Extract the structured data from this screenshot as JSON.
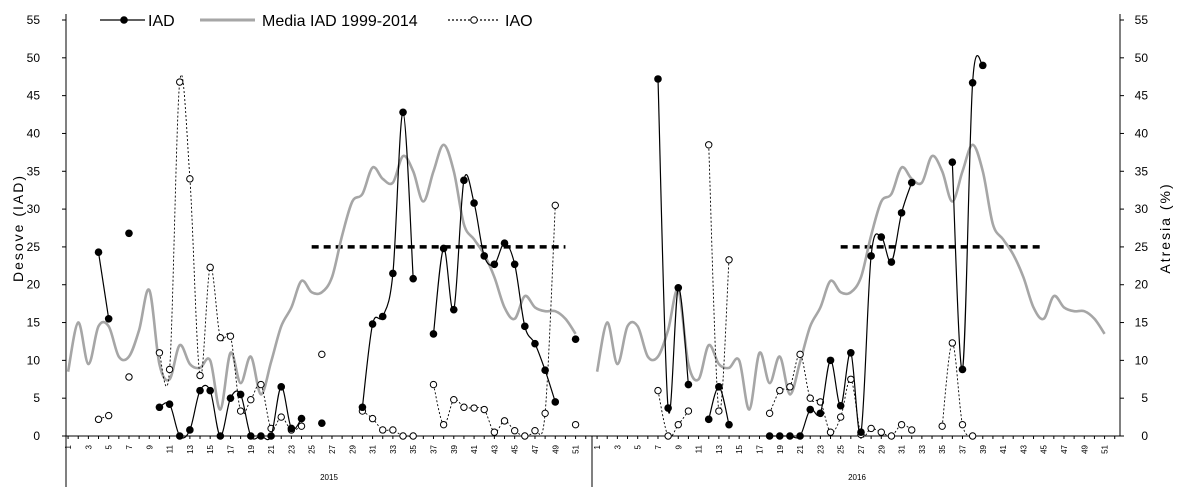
{
  "chart_data": {
    "type": "line",
    "ylabel_left": "Desove (IAD)",
    "ylabel_right": "Atresia (%)",
    "y_ticks": [
      0,
      5,
      10,
      15,
      20,
      25,
      30,
      35,
      40,
      45,
      50,
      55
    ],
    "ylim": [
      0,
      55
    ],
    "x_tick_labels": [
      "1",
      "3",
      "5",
      "7",
      "9",
      "11",
      "13",
      "15",
      "17",
      "19",
      "21",
      "23",
      "25",
      "27",
      "29",
      "31",
      "33",
      "35",
      "37",
      "39",
      "41",
      "43",
      "45",
      "47",
      "49",
      "51"
    ],
    "years": [
      {
        "label": "2015",
        "xrange": [
          1,
          52
        ]
      },
      {
        "label": "2016",
        "xrange": [
          1,
          52
        ]
      }
    ],
    "legend": {
      "iad": "IAD",
      "media": "Media IAD  1999-2014",
      "iao": "IAO"
    },
    "colors": {
      "iad": "#000000",
      "media": "#a6a6a6",
      "iao": "#000000",
      "threshold": "#000000"
    },
    "threshold": {
      "value": 25,
      "segments": [
        {
          "year": 0,
          "x_from": 25,
          "x_to": 50
        },
        {
          "year": 1,
          "x_from": 25,
          "x_to": 45
        }
      ]
    },
    "series": [
      {
        "name": "IAD",
        "key": "iad",
        "style": "solid-filled",
        "years": [
          [
            [
              4,
              24.3
            ],
            [
              5,
              15.5
            ],
            [
              7,
              26.8
            ],
            [
              10,
              3.8
            ],
            [
              11,
              4.2
            ],
            [
              12,
              0
            ],
            [
              13,
              0.8
            ],
            [
              14,
              6
            ],
            [
              15,
              6
            ],
            [
              16,
              0
            ],
            [
              17,
              5
            ],
            [
              18,
              5.5
            ],
            [
              19,
              0
            ],
            [
              20,
              0
            ],
            [
              21,
              0
            ],
            [
              22,
              6.5
            ],
            [
              23,
              1
            ],
            [
              24,
              2.3
            ],
            [
              26,
              1.7
            ],
            [
              30,
              3.8
            ],
            [
              31,
              14.8
            ],
            [
              32,
              15.8
            ],
            [
              33,
              21.5
            ],
            [
              34,
              42.8
            ],
            [
              35,
              20.8
            ],
            [
              37,
              13.5
            ],
            [
              38,
              24.8
            ],
            [
              39,
              16.7
            ],
            [
              40,
              33.8
            ],
            [
              41,
              30.8
            ],
            [
              42,
              23.8
            ],
            [
              43,
              22.7
            ],
            [
              44,
              25.5
            ],
            [
              45,
              22.7
            ],
            [
              46,
              14.5
            ],
            [
              47,
              12.2
            ],
            [
              48,
              8.7
            ],
            [
              49,
              4.5
            ],
            [
              51,
              12.8
            ]
          ],
          [
            [
              7,
              47.2
            ],
            [
              8,
              3.7
            ],
            [
              9,
              19.6
            ],
            [
              10,
              6.8
            ],
            [
              12,
              2.2
            ],
            [
              13,
              6.5
            ],
            [
              14,
              1.5
            ],
            [
              18,
              0
            ],
            [
              19,
              0
            ],
            [
              20,
              0
            ],
            [
              21,
              0
            ],
            [
              22,
              3.5
            ],
            [
              23,
              3
            ],
            [
              24,
              10
            ],
            [
              25,
              4
            ],
            [
              26,
              11
            ],
            [
              27,
              0.5
            ],
            [
              28,
              23.8
            ],
            [
              29,
              26.3
            ],
            [
              30,
              23
            ],
            [
              31,
              29.5
            ],
            [
              32,
              33.5
            ],
            [
              36,
              36.2
            ],
            [
              37,
              8.8
            ],
            [
              38,
              46.7
            ],
            [
              39,
              49
            ]
          ]
        ]
      },
      {
        "name": "Media IAD  1999-2014",
        "key": "media",
        "style": "smooth",
        "years": [
          [
            [
              1,
              8.5
            ],
            [
              2,
              15
            ],
            [
              3,
              9.5
            ],
            [
              4,
              14.5
            ],
            [
              5,
              14.5
            ],
            [
              6,
              10.5
            ],
            [
              7,
              10.5
            ],
            [
              8,
              14
            ],
            [
              9,
              19.3
            ],
            [
              10,
              9.5
            ],
            [
              11,
              7.5
            ],
            [
              12,
              12
            ],
            [
              13,
              9.5
            ],
            [
              14,
              9
            ],
            [
              15,
              10
            ],
            [
              16,
              3.5
            ],
            [
              17,
              11
            ],
            [
              18,
              7
            ],
            [
              19,
              10.5
            ],
            [
              20,
              5.5
            ],
            [
              21,
              9.8
            ],
            [
              22,
              14.5
            ],
            [
              23,
              17
            ],
            [
              24,
              20.5
            ],
            [
              25,
              19
            ],
            [
              26,
              19
            ],
            [
              27,
              21
            ],
            [
              28,
              26.5
            ],
            [
              29,
              31
            ],
            [
              30,
              32
            ],
            [
              31,
              35.5
            ],
            [
              32,
              34
            ],
            [
              33,
              33.5
            ],
            [
              34,
              37
            ],
            [
              35,
              35
            ],
            [
              36,
              31
            ],
            [
              37,
              35
            ],
            [
              38,
              38.5
            ],
            [
              39,
              35
            ],
            [
              40,
              28
            ],
            [
              41,
              26
            ],
            [
              42,
              24
            ],
            [
              43,
              21
            ],
            [
              44,
              17
            ],
            [
              45,
              15.5
            ],
            [
              46,
              18.5
            ],
            [
              47,
              17
            ],
            [
              48,
              16.5
            ],
            [
              49,
              16.5
            ],
            [
              50,
              15.5
            ],
            [
              51,
              13.5
            ]
          ],
          [
            [
              1,
              8.5
            ],
            [
              2,
              15
            ],
            [
              3,
              9.5
            ],
            [
              4,
              14.5
            ],
            [
              5,
              14.5
            ],
            [
              6,
              10.5
            ],
            [
              7,
              10.5
            ],
            [
              8,
              14
            ],
            [
              9,
              19.3
            ],
            [
              10,
              9.5
            ],
            [
              11,
              7.5
            ],
            [
              12,
              12
            ],
            [
              13,
              9.5
            ],
            [
              14,
              9
            ],
            [
              15,
              10
            ],
            [
              16,
              3.5
            ],
            [
              17,
              11
            ],
            [
              18,
              7
            ],
            [
              19,
              10.5
            ],
            [
              20,
              5.5
            ],
            [
              21,
              9.8
            ],
            [
              22,
              14.5
            ],
            [
              23,
              17
            ],
            [
              24,
              20.5
            ],
            [
              25,
              19
            ],
            [
              26,
              19
            ],
            [
              27,
              21
            ],
            [
              28,
              26.5
            ],
            [
              29,
              31
            ],
            [
              30,
              32
            ],
            [
              31,
              35.5
            ],
            [
              32,
              34
            ],
            [
              33,
              33.5
            ],
            [
              34,
              37
            ],
            [
              35,
              35
            ],
            [
              36,
              31
            ],
            [
              37,
              35
            ],
            [
              38,
              38.5
            ],
            [
              39,
              35
            ],
            [
              40,
              28
            ],
            [
              41,
              26
            ],
            [
              42,
              24
            ],
            [
              43,
              21
            ],
            [
              44,
              17
            ],
            [
              45,
              15.5
            ],
            [
              46,
              18.5
            ],
            [
              47,
              17
            ],
            [
              48,
              16.5
            ],
            [
              49,
              16.5
            ],
            [
              50,
              15.5
            ],
            [
              51,
              13.5
            ]
          ]
        ]
      },
      {
        "name": "IAO",
        "key": "iao",
        "style": "dotted-open",
        "years": [
          [
            [
              4,
              2.2
            ],
            [
              5,
              2.7
            ],
            [
              7,
              7.8
            ],
            [
              10,
              11
            ],
            [
              11,
              8.8
            ],
            [
              12,
              46.8
            ],
            [
              13,
              34
            ],
            [
              14,
              8
            ],
            [
              15,
              22.3
            ],
            [
              16,
              13
            ],
            [
              17,
              13.2
            ],
            [
              18,
              3.3
            ],
            [
              19,
              4.8
            ],
            [
              20,
              6.8
            ],
            [
              21,
              1
            ],
            [
              22,
              2.5
            ],
            [
              23,
              0.8
            ],
            [
              24,
              1.3
            ],
            [
              26,
              10.8
            ],
            [
              30,
              3.3
            ],
            [
              31,
              2.3
            ],
            [
              32,
              0.8
            ],
            [
              33,
              0.8
            ],
            [
              34,
              0
            ],
            [
              35,
              0
            ],
            [
              37,
              6.8
            ],
            [
              38,
              1.5
            ],
            [
              39,
              4.8
            ],
            [
              40,
              3.8
            ],
            [
              41,
              3.7
            ],
            [
              42,
              3.5
            ],
            [
              43,
              0.5
            ],
            [
              44,
              2
            ],
            [
              45,
              0.7
            ],
            [
              46,
              0
            ],
            [
              47,
              0.7
            ],
            [
              48,
              3
            ],
            [
              49,
              30.5
            ],
            [
              51,
              1.5
            ]
          ],
          [
            [
              7,
              6
            ],
            [
              8,
              0
            ],
            [
              9,
              1.5
            ],
            [
              10,
              3.3
            ],
            [
              12,
              38.5
            ],
            [
              13,
              3.3
            ],
            [
              14,
              23.3
            ],
            [
              18,
              3
            ],
            [
              19,
              6
            ],
            [
              20,
              6.5
            ],
            [
              21,
              10.8
            ],
            [
              22,
              5
            ],
            [
              23,
              4.5
            ],
            [
              24,
              0.5
            ],
            [
              25,
              2.5
            ],
            [
              26,
              7.5
            ],
            [
              27,
              0.2
            ],
            [
              28,
              1
            ],
            [
              29,
              0.5
            ],
            [
              30,
              0
            ],
            [
              31,
              1.5
            ],
            [
              32,
              0.8
            ],
            [
              35,
              1.3
            ],
            [
              36,
              12.3
            ],
            [
              37,
              1.5
            ],
            [
              38,
              0
            ]
          ]
        ]
      }
    ]
  }
}
